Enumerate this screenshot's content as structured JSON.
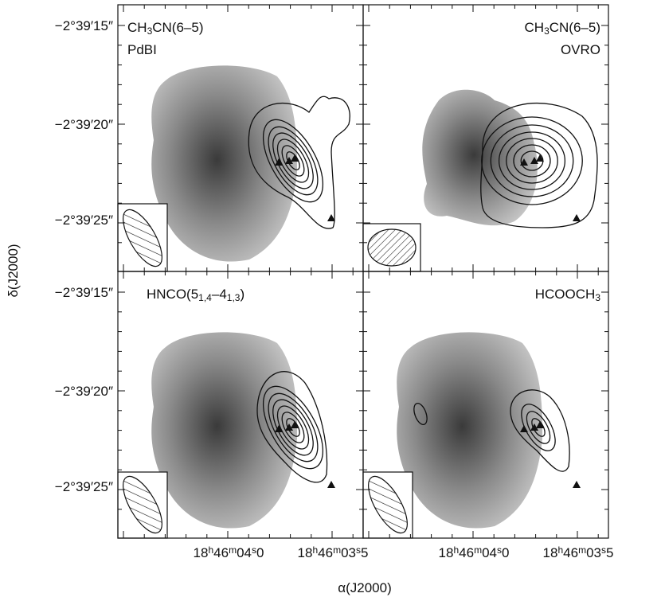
{
  "panels": [
    {
      "title": [
        "CH",
        "3",
        "CN(6–5)"
      ],
      "subtitle": "PdBI"
    },
    {
      "title": [
        "CH",
        "3",
        "CN(6–5)"
      ],
      "subtitle": "OVRO"
    },
    {
      "title": [
        "HNCO(5",
        "1,4",
        "–4",
        "1,3",
        ")"
      ]
    },
    {
      "title": [
        "HCOOCH",
        "3"
      ]
    }
  ],
  "y_tick_labels": [
    "−2°39′15″",
    "−2°39′20″",
    "−2°39′25″"
  ],
  "x_tick_labels": [
    [
      "18",
      "h",
      "46",
      "m",
      "04",
      "s",
      "0"
    ],
    [
      "18",
      "h",
      "46",
      "m",
      "03",
      "s",
      "5"
    ]
  ],
  "y_axis_label": "δ(J2000)",
  "x_axis_label": "α(J2000)"
}
